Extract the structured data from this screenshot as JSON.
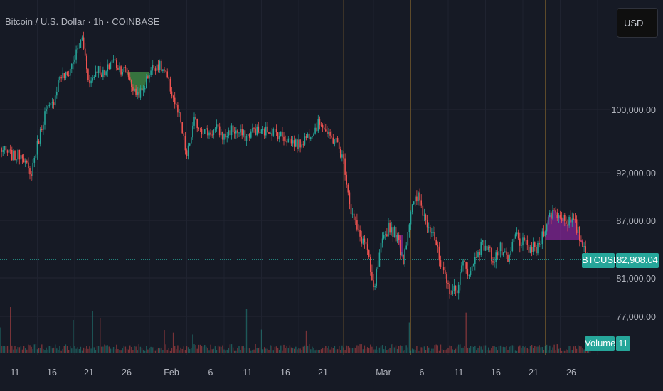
{
  "header": {
    "symbol_title": "Bitcoin / U.S. Dollar · 1h · COINBASE"
  },
  "currency_button": {
    "label": "USD"
  },
  "price_axis": {
    "labels": [
      "100,000.00",
      "92,000.00",
      "87,000.00",
      "81,000.00",
      "77,000.00"
    ]
  },
  "time_axis": {
    "labels": [
      "11",
      "16",
      "21",
      "26",
      "Feb",
      "6",
      "11",
      "16",
      "21",
      "Mar",
      "6",
      "11",
      "16",
      "21",
      "26"
    ]
  },
  "last_price": {
    "symbol": "BTCUSD",
    "value": "82,908.04"
  },
  "volume_badge": {
    "label": "Volume",
    "value": "11"
  },
  "colors": {
    "background": "#161a25",
    "up": "#26a69a",
    "down": "#ef5350",
    "green_fill": "#4caf50",
    "purple_fill": "#9c27b0",
    "price_line": "#26a69a"
  },
  "chart_data": {
    "type": "candlestick",
    "title": "Bitcoin / U.S. Dollar · 1h · COINBASE",
    "currency": "USD",
    "y_ticks": [
      100000,
      92000,
      87000,
      81000,
      77000
    ],
    "x_ticks": [
      "11",
      "16",
      "21",
      "26",
      "Feb",
      "6",
      "11",
      "16",
      "21",
      "Mar",
      "6",
      "11",
      "16",
      "21",
      "26"
    ],
    "last_price": 82908.04,
    "price_path": [
      [
        "Jan 9",
        95000
      ],
      [
        "Jan 10",
        94500
      ],
      [
        "Jan 11",
        94000
      ],
      [
        "Jan 12",
        94500
      ],
      [
        "Jan 13",
        91500
      ],
      [
        "Jan 14",
        95500
      ],
      [
        "Jan 15",
        99500
      ],
      [
        "Jan 16",
        100500
      ],
      [
        "Jan 17",
        104000
      ],
      [
        "Jan 18",
        104000
      ],
      [
        "Jan 20",
        108500
      ],
      [
        "Jan 21",
        103000
      ],
      [
        "Jan 22",
        105000
      ],
      [
        "Jan 23",
        104000
      ],
      [
        "Jan 24",
        106000
      ],
      [
        "Jan 25",
        105000
      ],
      [
        "Jan 26",
        104500
      ],
      [
        "Jan 27",
        102000
      ],
      [
        "Jan 28",
        102000
      ],
      [
        "Jan 29",
        104500
      ],
      [
        "Jan 30",
        105500
      ],
      [
        "Jan 31",
        104500
      ],
      [
        "Feb 1",
        102000
      ],
      [
        "Feb 2",
        99000
      ],
      [
        "Feb 3",
        94000
      ],
      [
        "Feb 4",
        98500
      ],
      [
        "Feb 5",
        97500
      ],
      [
        "Feb 6",
        97000
      ],
      [
        "Feb 7",
        97500
      ],
      [
        "Feb 8",
        96500
      ],
      [
        "Feb 9",
        97500
      ],
      [
        "Feb 10",
        97000
      ],
      [
        "Feb 11",
        96500
      ],
      [
        "Feb 12",
        97500
      ],
      [
        "Feb 13",
        97000
      ],
      [
        "Feb 14",
        97500
      ],
      [
        "Feb 15",
        97000
      ],
      [
        "Feb 16",
        96500
      ],
      [
        "Feb 17",
        96000
      ],
      [
        "Feb 18",
        95500
      ],
      [
        "Feb 19",
        96500
      ],
      [
        "Feb 20",
        97500
      ],
      [
        "Feb 21",
        98500
      ],
      [
        "Feb 22",
        96500
      ],
      [
        "Feb 23",
        96000
      ],
      [
        "Feb 24",
        93500
      ],
      [
        "Feb 25",
        88000
      ],
      [
        "Feb 26",
        85500
      ],
      [
        "Feb 27",
        84500
      ],
      [
        "Feb 28",
        79500
      ],
      [
        "Mar 1",
        84000
      ],
      [
        "Mar 2",
        86500
      ],
      [
        "Mar 3",
        85500
      ],
      [
        "Mar 4",
        83000
      ],
      [
        "Mar 5",
        88000
      ],
      [
        "Mar 6",
        89500
      ],
      [
        "Mar 7",
        87000
      ],
      [
        "Mar 8",
        86000
      ],
      [
        "Mar 9",
        82000
      ],
      [
        "Mar 10",
        80000
      ],
      [
        "Mar 11",
        79500
      ],
      [
        "Mar 12",
        82500
      ],
      [
        "Mar 13",
        81500
      ],
      [
        "Mar 14",
        84000
      ],
      [
        "Mar 15",
        84500
      ],
      [
        "Mar 16",
        83000
      ],
      [
        "Mar 17",
        84000
      ],
      [
        "Mar 18",
        82500
      ],
      [
        "Mar 19",
        85500
      ],
      [
        "Mar 20",
        84500
      ],
      [
        "Mar 21",
        84000
      ],
      [
        "Mar 22",
        84000
      ],
      [
        "Mar 23",
        86500
      ],
      [
        "Mar 24",
        88000
      ],
      [
        "Mar 25",
        87500
      ],
      [
        "Mar 26",
        87000
      ],
      [
        "Mar 27",
        86500
      ],
      [
        "Mar 28",
        84500
      ],
      [
        "Mar 29",
        82908
      ]
    ],
    "highlights": [
      {
        "color": "green",
        "from": "Jan 26",
        "to": "Jan 29",
        "base_price": 104500
      },
      {
        "color": "purple",
        "from": "Mar 3",
        "to": "Mar 4",
        "base_price": 85500
      },
      {
        "color": "purple",
        "from": "Mar 23",
        "to": "Mar 28",
        "base_price": 85000
      }
    ],
    "vertical_markers": [
      "Jan 26",
      "Feb 24",
      "Mar 3",
      "Mar 5",
      "Mar 23"
    ],
    "volume_series": {
      "name": "Volume",
      "last_value": 11
    }
  }
}
